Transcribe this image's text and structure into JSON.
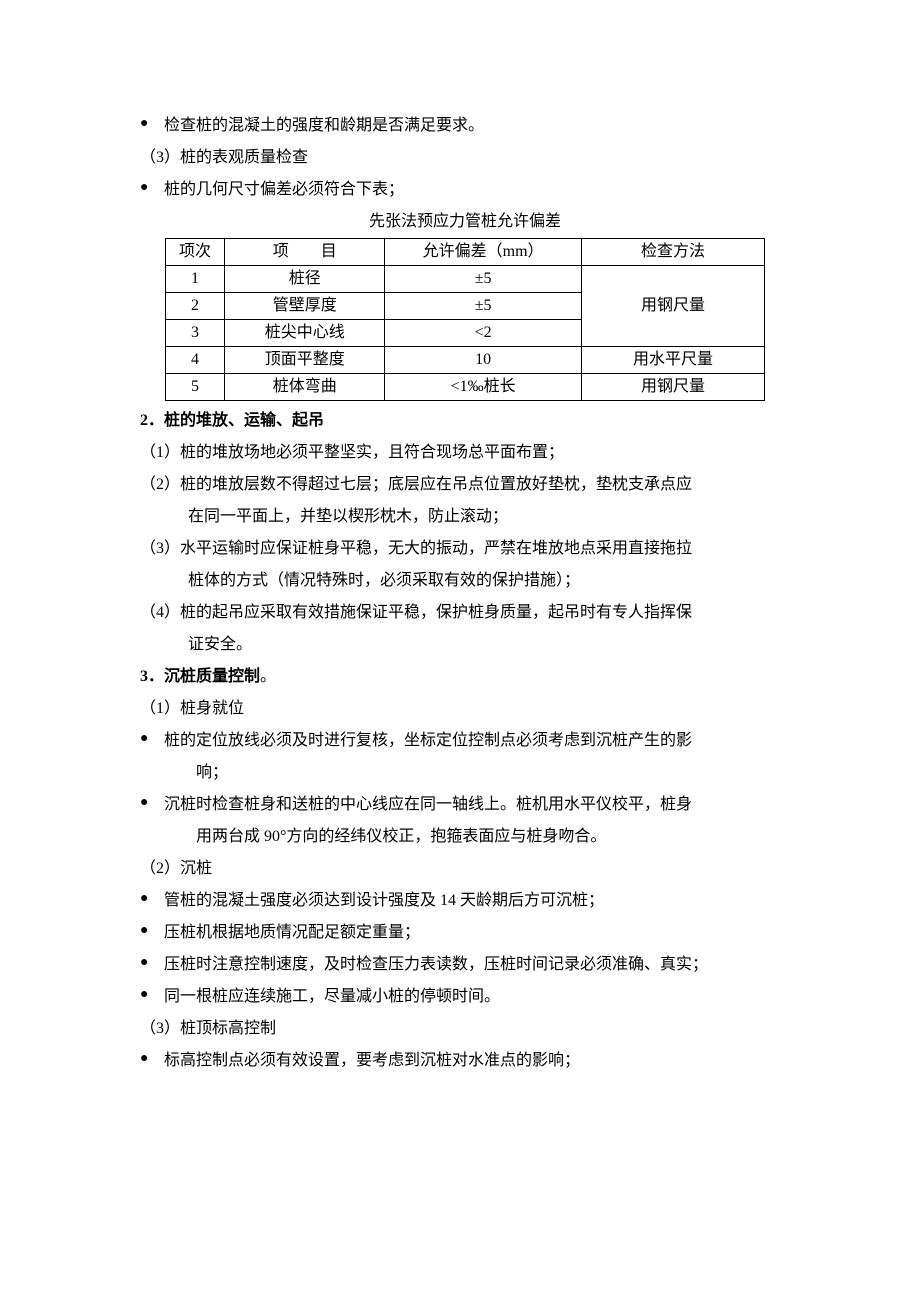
{
  "intro": {
    "bullet1": "检查桩的混凝土的强度和龄期是否满足要求。",
    "line_num3": "（3）桩的表观质量检查",
    "bullet2": "桩的几何尺寸偏差必须符合下表；"
  },
  "table": {
    "caption": "先张法预应力管桩允许偏差",
    "headers": {
      "idx": "项次",
      "item": "项　　目",
      "tol": "允许偏差（mm）",
      "method": "检查方法"
    },
    "rows": [
      {
        "idx": "1",
        "item": "桩径",
        "tol": "±5",
        "method": "用钢尺量",
        "merge_method_rows": 3
      },
      {
        "idx": "2",
        "item": "管壁厚度",
        "tol": "±5"
      },
      {
        "idx": "3",
        "item": "桩尖中心线",
        "tol": "<2"
      },
      {
        "idx": "4",
        "item": "顶面平整度",
        "tol": "10",
        "method": "用水平尺量",
        "merge_method_rows": 1
      },
      {
        "idx": "5",
        "item": "桩体弯曲",
        "tol": "<1‰桩长",
        "method": "用钢尺量",
        "merge_method_rows": 1
      }
    ]
  },
  "sec2": {
    "title": "2．桩的堆放、运输、起吊",
    "items": [
      {
        "first": "（1）桩的堆放场地必须平整坚实，且符合现场总平面布置；"
      },
      {
        "first": "（2）桩的堆放层数不得超过七层；底层应在吊点位置放好垫枕，垫枕支承点应",
        "cont": "在同一平面上，并垫以楔形枕木，防止滚动；"
      },
      {
        "first": "（3）水平运输时应保证桩身平稳，无大的振动，严禁在堆放地点采用直接拖拉",
        "cont": "桩体的方式（情况特殊时，必须采取有效的保护措施）；"
      },
      {
        "first": "（4）桩的起吊应采取有效措施保证平稳，保护桩身质量，起吊时有专人指挥保",
        "cont": "证安全。"
      }
    ]
  },
  "sec3": {
    "title": "3．沉桩质量控制",
    "title_suffix": "。",
    "sub1": {
      "label": "（1）桩身就位",
      "bullets": [
        {
          "first": "桩的定位放线必须及时进行复核，坐标定位控制点必须考虑到沉桩产生的影",
          "cont": "响；"
        },
        {
          "first": "沉桩时检查桩身和送桩的中心线应在同一轴线上。桩机用水平仪校平，桩身",
          "cont": "用两台成 90°方向的经纬仪校正，抱箍表面应与桩身吻合。"
        }
      ]
    },
    "sub2": {
      "label": "（2）沉桩",
      "bullets": [
        "管桩的混凝土强度必须达到设计强度及 14 天龄期后方可沉桩；",
        "压桩机根据地质情况配足额定重量；",
        "压桩时注意控制速度，及时检查压力表读数，压桩时间记录必须准确、真实；",
        "同一根桩应连续施工，尽量减小桩的停顿时间。"
      ]
    },
    "sub3": {
      "label": "（3）桩顶标高控制",
      "bullets": [
        "标高控制点必须有效设置，要考虑到沉桩对水准点的影响；"
      ]
    }
  }
}
